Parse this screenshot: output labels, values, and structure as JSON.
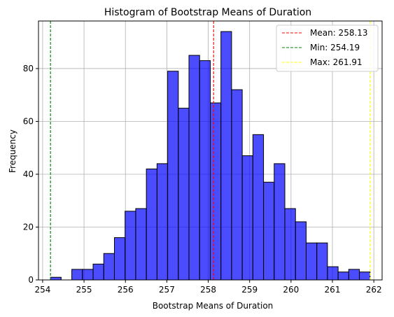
{
  "chart_data": {
    "type": "bar",
    "title": "Histogram of Bootstrap Means of Duration",
    "xlabel": "Bootstrap Means of Duration",
    "ylabel": "Frequency",
    "xlim": [
      253.9,
      262.2
    ],
    "ylim": [
      0,
      98
    ],
    "grid": true,
    "x_ticks": [
      {
        "value": 254,
        "label": "254"
      },
      {
        "value": 255,
        "label": "255"
      },
      {
        "value": 256,
        "label": "256"
      },
      {
        "value": 257,
        "label": "257"
      },
      {
        "value": 258,
        "label": "258"
      },
      {
        "value": 259,
        "label": "259"
      },
      {
        "value": 260,
        "label": "260"
      },
      {
        "value": 261,
        "label": "261"
      },
      {
        "value": 262,
        "label": "262"
      }
    ],
    "y_ticks": [
      {
        "value": 0,
        "label": "0"
      },
      {
        "value": 20,
        "label": "20"
      },
      {
        "value": 40,
        "label": "40"
      },
      {
        "value": 60,
        "label": "60"
      },
      {
        "value": 80,
        "label": "80"
      }
    ],
    "bin_start": 254.19,
    "bin_width": 0.2573,
    "counts": [
      1,
      0,
      4,
      4,
      6,
      10,
      16,
      26,
      27,
      42,
      44,
      79,
      65,
      85,
      83,
      67,
      94,
      72,
      47,
      55,
      37,
      44,
      27,
      22,
      14,
      14,
      5,
      3,
      4,
      3
    ],
    "bar_color": "#0000ff",
    "bar_opacity": 0.7,
    "bar_edge_color": "#000000",
    "reference_lines": [
      {
        "name": "Mean: 258.13",
        "value": 258.13,
        "color": "#ff0000"
      },
      {
        "name": "Min: 254.19",
        "value": 254.19,
        "color": "#008000"
      },
      {
        "name": "Max: 261.91",
        "value": 261.91,
        "color": "#ffff00"
      }
    ],
    "legend_position": "top-right"
  }
}
